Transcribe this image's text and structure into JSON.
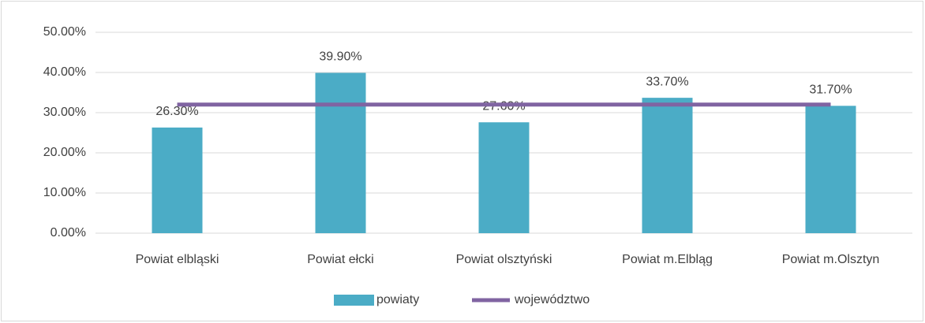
{
  "chart_data": {
    "type": "bar",
    "categories": [
      "Powiat elbląski",
      "Powiat ełcki",
      "Powiat olsztyński",
      "Powiat m.Elbląg",
      "Powiat m.Olsztyn"
    ],
    "series": [
      {
        "name": "powiaty",
        "type": "bar",
        "color": "#4bacc6",
        "values": [
          26.3,
          39.9,
          27.6,
          33.7,
          31.7
        ],
        "value_labels": [
          "26.30%",
          "39.90%",
          "27.60%",
          "33.70%",
          "31.70%"
        ]
      },
      {
        "name": "województwo",
        "type": "line",
        "color": "#8064a2",
        "values": [
          32,
          32,
          32,
          32,
          32
        ]
      }
    ],
    "ylim": [
      0,
      50
    ],
    "yticks": [
      {
        "value": 0,
        "label": "0.00%"
      },
      {
        "value": 10,
        "label": "10.00%"
      },
      {
        "value": 20,
        "label": "20.00%"
      },
      {
        "value": 30,
        "label": "30.00%"
      },
      {
        "value": 40,
        "label": "40.00%"
      },
      {
        "value": 50,
        "label": "50.00%"
      }
    ],
    "grid": true,
    "legend": "bottom"
  }
}
